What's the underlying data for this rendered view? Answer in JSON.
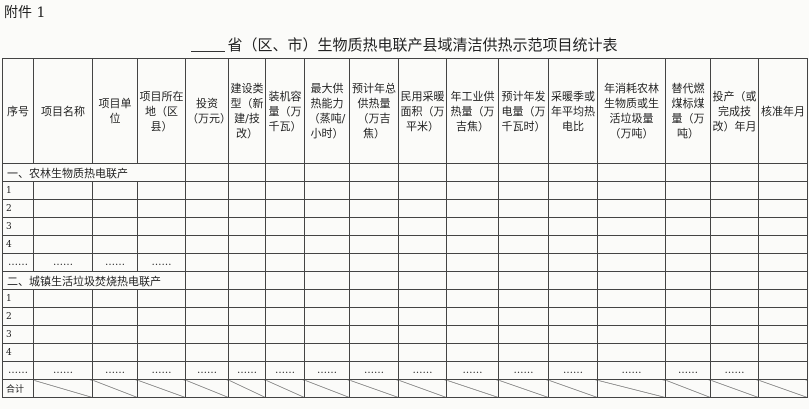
{
  "header": {
    "attachment": "附件 1",
    "title": "省（区、市）生物质热电联产县域清洁供热示范项目统计表"
  },
  "table": {
    "columns": [
      "序号",
      "项目名称",
      "项目单位",
      "项目所在地（区县）",
      "投资（万元）",
      "建设类型（新建/技改）",
      "装机容量（万千瓦）",
      "最大供热能力（蒸吨/小时）",
      "预计年总供热量（万吉焦）",
      "民用采暖面积（万平米）",
      "年工业供热量（万吉焦）",
      "预计年发电量（万千瓦时）",
      "采暖季或年平均热电比",
      "年消耗农林生物质或生活垃圾量（万吨）",
      "替代燃煤标煤量（万吨）",
      "投产（或完成技改）年月",
      "核准年月"
    ],
    "sections": [
      {
        "title": "一、农林生物质热电联产",
        "rows": [
          "1",
          "2",
          "3",
          "4"
        ],
        "ellipsis": [
          "……",
          "……",
          "……",
          "……"
        ]
      },
      {
        "title": "二、城镇生活垃圾焚烧热电联产",
        "rows": [
          "1",
          "2",
          "3",
          "4"
        ],
        "ellipsis": [
          "……",
          "……",
          "……",
          "……",
          "……",
          "……",
          "……",
          "……",
          "……",
          "……",
          "……",
          "……",
          "……",
          "……",
          "……",
          "……"
        ]
      }
    ],
    "total_label": "合计"
  }
}
